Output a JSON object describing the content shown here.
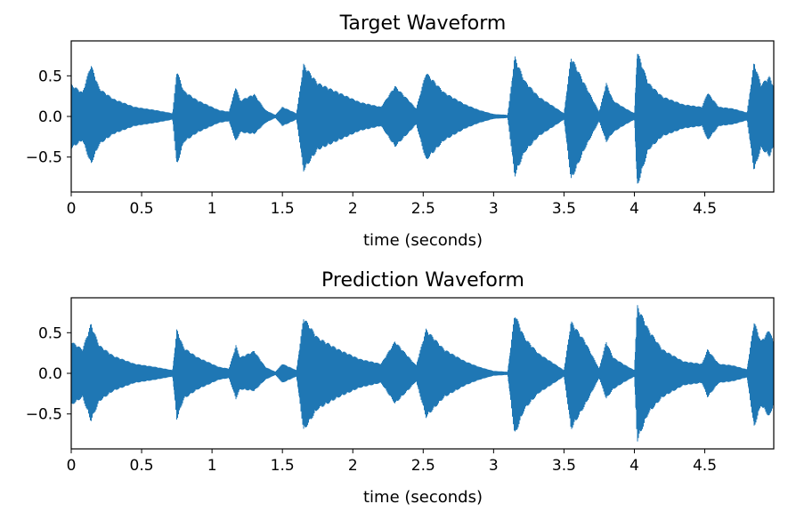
{
  "chart_data": [
    {
      "type": "line",
      "title": "Target Waveform",
      "xlabel": "time (seconds)",
      "ylabel": "",
      "xlim": [
        0,
        4.99
      ],
      "ylim": [
        -0.93,
        0.93
      ],
      "xticks": [
        0,
        0.5,
        1,
        1.5,
        2,
        2.5,
        3,
        3.5,
        4,
        4.5
      ],
      "xtick_labels": [
        "0",
        "0.5",
        "1",
        "1.5",
        "2",
        "2.5",
        "3",
        "3.5",
        "4",
        "4.5"
      ],
      "yticks": [
        0.5,
        0.0,
        -0.5
      ],
      "ytick_labels": [
        "0.5",
        "0.0",
        "−0.5"
      ],
      "grid": false,
      "color": "#1f77b4",
      "series": [
        {
          "x": [
            0,
            0.08,
            0.14,
            0.2,
            0.3,
            0.45,
            0.6,
            0.72,
            0.75,
            0.8,
            0.9,
            1.0,
            1.05,
            1.12,
            1.17,
            1.2,
            1.3,
            1.38,
            1.45,
            1.5,
            1.6,
            1.65,
            1.75,
            1.9,
            2.05,
            2.2,
            2.3,
            2.4,
            2.45,
            2.52,
            2.65,
            2.8,
            2.9,
            3.0,
            3.1,
            3.15,
            3.22,
            3.32,
            3.45,
            3.5,
            3.55,
            3.65,
            3.75,
            3.8,
            3.85,
            3.92,
            4.0,
            4.02,
            4.1,
            4.2,
            4.35,
            4.48,
            4.52,
            4.6,
            4.7,
            4.8,
            4.85,
            4.9,
            4.96,
            4.99
          ],
          "upper": [
            0.4,
            0.3,
            0.65,
            0.35,
            0.22,
            0.12,
            0.08,
            0.04,
            0.58,
            0.32,
            0.2,
            0.12,
            0.08,
            0.06,
            0.38,
            0.2,
            0.28,
            0.08,
            0.02,
            0.12,
            0.04,
            0.65,
            0.42,
            0.3,
            0.18,
            0.12,
            0.38,
            0.2,
            0.1,
            0.55,
            0.3,
            0.15,
            0.08,
            0.03,
            0.02,
            0.75,
            0.45,
            0.25,
            0.1,
            0.04,
            0.75,
            0.4,
            0.06,
            0.42,
            0.2,
            0.12,
            0.04,
            0.82,
            0.42,
            0.25,
            0.15,
            0.12,
            0.3,
            0.12,
            0.1,
            0.05,
            0.68,
            0.4,
            0.5,
            0.38
          ],
          "lower": [
            -0.4,
            -0.3,
            -0.6,
            -0.35,
            -0.22,
            -0.12,
            -0.08,
            -0.04,
            -0.62,
            -0.32,
            -0.2,
            -0.12,
            -0.08,
            -0.06,
            -0.32,
            -0.2,
            -0.22,
            -0.08,
            -0.02,
            -0.12,
            -0.04,
            -0.68,
            -0.42,
            -0.3,
            -0.18,
            -0.12,
            -0.38,
            -0.2,
            -0.1,
            -0.55,
            -0.3,
            -0.15,
            -0.08,
            -0.03,
            -0.02,
            -0.75,
            -0.45,
            -0.25,
            -0.1,
            -0.04,
            -0.8,
            -0.4,
            -0.06,
            -0.32,
            -0.2,
            -0.12,
            -0.04,
            -0.88,
            -0.42,
            -0.25,
            -0.15,
            -0.12,
            -0.3,
            -0.12,
            -0.1,
            -0.05,
            -0.68,
            -0.4,
            -0.5,
            -0.38
          ]
        }
      ]
    },
    {
      "type": "line",
      "title": "Prediction Waveform",
      "xlabel": "time (seconds)",
      "ylabel": "",
      "xlim": [
        0,
        4.99
      ],
      "ylim": [
        -0.93,
        0.93
      ],
      "xticks": [
        0,
        0.5,
        1,
        1.5,
        2,
        2.5,
        3,
        3.5,
        4,
        4.5
      ],
      "xtick_labels": [
        "0",
        "0.5",
        "1",
        "1.5",
        "2",
        "2.5",
        "3",
        "3.5",
        "4",
        "4.5"
      ],
      "yticks": [
        0.5,
        0.0,
        -0.5
      ],
      "ytick_labels": [
        "0.5",
        "0.0",
        "−0.5"
      ],
      "grid": false,
      "color": "#1f77b4",
      "series": [
        {
          "x": [
            0,
            0.08,
            0.14,
            0.2,
            0.3,
            0.45,
            0.6,
            0.72,
            0.75,
            0.8,
            0.9,
            1.0,
            1.05,
            1.12,
            1.17,
            1.2,
            1.3,
            1.38,
            1.45,
            1.5,
            1.6,
            1.65,
            1.75,
            1.9,
            2.05,
            2.2,
            2.3,
            2.4,
            2.45,
            2.52,
            2.65,
            2.8,
            2.9,
            3.0,
            3.1,
            3.15,
            3.22,
            3.32,
            3.45,
            3.5,
            3.55,
            3.65,
            3.75,
            3.8,
            3.85,
            3.92,
            4.0,
            4.02,
            4.1,
            4.2,
            4.35,
            4.48,
            4.52,
            4.6,
            4.7,
            4.8,
            4.85,
            4.9,
            4.96,
            4.99
          ],
          "upper": [
            0.4,
            0.3,
            0.62,
            0.35,
            0.22,
            0.12,
            0.08,
            0.04,
            0.55,
            0.32,
            0.2,
            0.12,
            0.08,
            0.06,
            0.35,
            0.2,
            0.28,
            0.08,
            0.02,
            0.12,
            0.04,
            0.7,
            0.45,
            0.3,
            0.18,
            0.12,
            0.4,
            0.2,
            0.1,
            0.55,
            0.3,
            0.15,
            0.08,
            0.03,
            0.02,
            0.75,
            0.45,
            0.25,
            0.1,
            0.04,
            0.65,
            0.4,
            0.06,
            0.4,
            0.2,
            0.12,
            0.04,
            0.85,
            0.55,
            0.3,
            0.15,
            0.12,
            0.3,
            0.12,
            0.1,
            0.05,
            0.65,
            0.4,
            0.55,
            0.38
          ],
          "lower": [
            -0.4,
            -0.3,
            -0.6,
            -0.35,
            -0.22,
            -0.12,
            -0.08,
            -0.04,
            -0.58,
            -0.32,
            -0.2,
            -0.12,
            -0.08,
            -0.06,
            -0.32,
            -0.2,
            -0.22,
            -0.08,
            -0.02,
            -0.12,
            -0.04,
            -0.72,
            -0.45,
            -0.3,
            -0.18,
            -0.12,
            -0.38,
            -0.2,
            -0.1,
            -0.55,
            -0.3,
            -0.15,
            -0.08,
            -0.03,
            -0.02,
            -0.78,
            -0.45,
            -0.25,
            -0.1,
            -0.04,
            -0.7,
            -0.4,
            -0.06,
            -0.32,
            -0.2,
            -0.12,
            -0.04,
            -0.85,
            -0.5,
            -0.3,
            -0.15,
            -0.12,
            -0.3,
            -0.12,
            -0.1,
            -0.05,
            -0.68,
            -0.4,
            -0.55,
            -0.38
          ]
        }
      ]
    }
  ]
}
